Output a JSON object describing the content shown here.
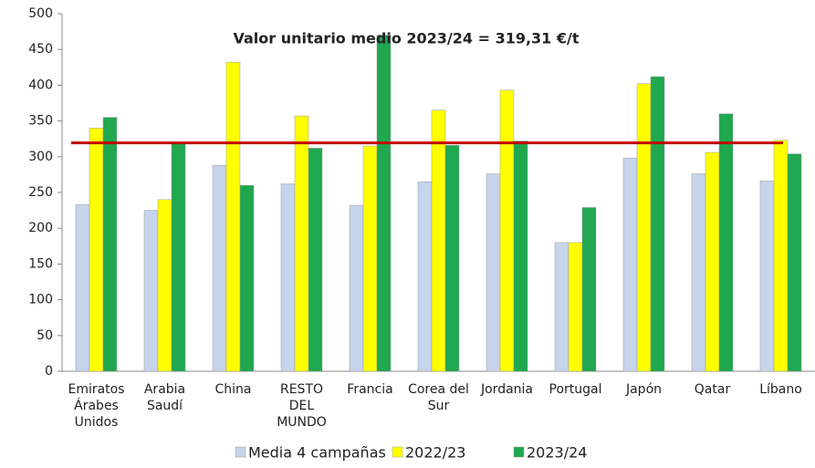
{
  "chart_data": {
    "type": "bar",
    "categories": [
      "Emiratos\nÁrabes\nUnidos",
      "Arabia\nSaudí",
      "China",
      "RESTO\nDEL\nMUNDO",
      "Francia",
      "Corea del\nSur",
      "Jordania",
      "Portugal",
      "Japón",
      "Qatar",
      "Líbano"
    ],
    "series": [
      {
        "name": "Media 4 campañas",
        "color": "#c6d4ec",
        "values": [
          233,
          225,
          288,
          262,
          232,
          265,
          276,
          180,
          298,
          276,
          266
        ]
      },
      {
        "name": "2022/23",
        "color": "#ffff00",
        "values": [
          340,
          240,
          432,
          357,
          315,
          365,
          393,
          180,
          402,
          306,
          323
        ]
      },
      {
        "name": "2023/24",
        "color": "#1fa84f",
        "values": [
          355,
          318,
          260,
          312,
          470,
          316,
          322,
          229,
          412,
          360,
          304
        ]
      }
    ],
    "reference_line": {
      "value": 319.31,
      "label": "Valor unitario medio 2023/24 = 319,31 €/t",
      "color": "#c00000"
    },
    "ylim": [
      0,
      500
    ],
    "yticks": [
      0,
      50,
      100,
      150,
      200,
      250,
      300,
      350,
      400,
      450,
      500
    ],
    "grid": false,
    "legend": "bottom"
  }
}
